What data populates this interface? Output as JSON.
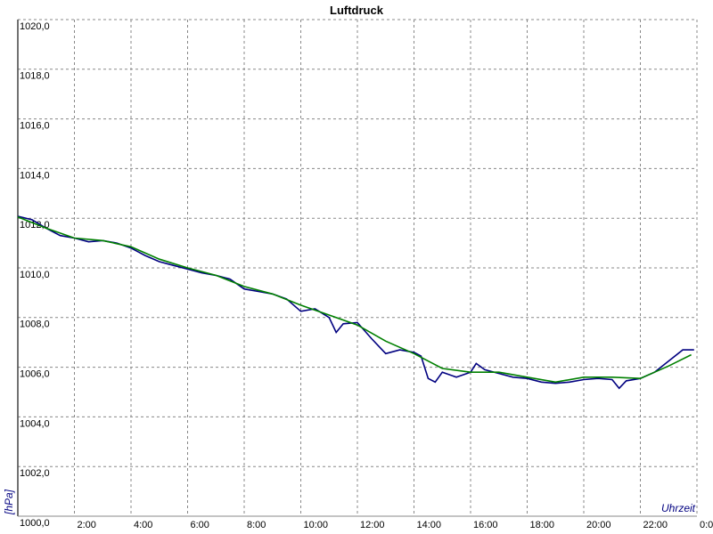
{
  "chart_data": {
    "type": "line",
    "title": "Luftdruck",
    "x_label": "Uhrzeit",
    "y_label": "[hPa]",
    "xlim": [
      0,
      24
    ],
    "ylim": [
      1000,
      1020
    ],
    "xticks": [
      {
        "value": 2,
        "label": "2:00"
      },
      {
        "value": 4,
        "label": "4:00"
      },
      {
        "value": 6,
        "label": "6:00"
      },
      {
        "value": 8,
        "label": "8:00"
      },
      {
        "value": 10,
        "label": "10:00"
      },
      {
        "value": 12,
        "label": "12:00"
      },
      {
        "value": 14,
        "label": "14:00"
      },
      {
        "value": 16,
        "label": "16:00"
      },
      {
        "value": 18,
        "label": "18:00"
      },
      {
        "value": 20,
        "label": "20:00"
      },
      {
        "value": 22,
        "label": "22:00"
      },
      {
        "value": 24,
        "label": "0:00"
      }
    ],
    "yticks": [
      {
        "value": 1000,
        "label": "1000,0"
      },
      {
        "value": 1002,
        "label": "1002,0"
      },
      {
        "value": 1004,
        "label": "1004,0"
      },
      {
        "value": 1006,
        "label": "1006,0"
      },
      {
        "value": 1008,
        "label": "1008,0"
      },
      {
        "value": 1010,
        "label": "1010,0"
      },
      {
        "value": 1012,
        "label": "1012,0"
      },
      {
        "value": 1014,
        "label": "1014,0"
      },
      {
        "value": 1016,
        "label": "1016,0"
      },
      {
        "value": 1018,
        "label": "1018,0"
      },
      {
        "value": 1020,
        "label": "1020,0"
      }
    ],
    "grid": true,
    "series": [
      {
        "color": "#000080",
        "x": [
          0,
          0.5,
          1,
          1.5,
          2,
          2.5,
          3,
          3.5,
          4,
          4.5,
          5,
          5.5,
          6,
          6.5,
          7,
          7.5,
          8,
          8.5,
          9,
          9.5,
          10,
          10.5,
          11,
          11.25,
          11.5,
          12,
          12.5,
          13,
          13.5,
          14,
          14.25,
          14.5,
          14.75,
          15,
          15.5,
          16,
          16.2,
          16.5,
          17,
          17.5,
          18,
          18.5,
          19,
          19.5,
          20,
          20.5,
          21,
          21.25,
          21.5,
          22,
          22.5,
          23,
          23.5,
          23.9
        ],
        "values": [
          1012.08,
          1011.94,
          1011.6,
          1011.3,
          1011.2,
          1011.05,
          1011.1,
          1011.0,
          1010.8,
          1010.5,
          1010.25,
          1010.1,
          1009.95,
          1009.8,
          1009.7,
          1009.55,
          1009.15,
          1009.05,
          1008.95,
          1008.75,
          1008.25,
          1008.35,
          1008.0,
          1007.4,
          1007.75,
          1007.8,
          1007.15,
          1006.55,
          1006.7,
          1006.6,
          1006.45,
          1005.55,
          1005.4,
          1005.8,
          1005.6,
          1005.8,
          1006.15,
          1005.9,
          1005.75,
          1005.6,
          1005.55,
          1005.4,
          1005.35,
          1005.4,
          1005.5,
          1005.55,
          1005.5,
          1005.15,
          1005.45,
          1005.55,
          1005.8,
          1006.25,
          1006.7,
          1006.7
        ]
      },
      {
        "color": "#008000",
        "x": [
          0,
          1,
          2,
          3,
          4,
          5,
          6,
          7,
          8,
          9,
          10,
          11,
          12,
          13,
          14,
          15,
          16,
          17,
          18,
          19,
          20,
          21,
          22,
          23,
          23.8
        ],
        "values": [
          1012.05,
          1011.6,
          1011.2,
          1011.1,
          1010.85,
          1010.35,
          1010.0,
          1009.7,
          1009.25,
          1008.95,
          1008.5,
          1008.1,
          1007.7,
          1007.05,
          1006.55,
          1005.95,
          1005.8,
          1005.8,
          1005.6,
          1005.4,
          1005.6,
          1005.6,
          1005.55,
          1006.05,
          1006.5
        ]
      }
    ]
  }
}
